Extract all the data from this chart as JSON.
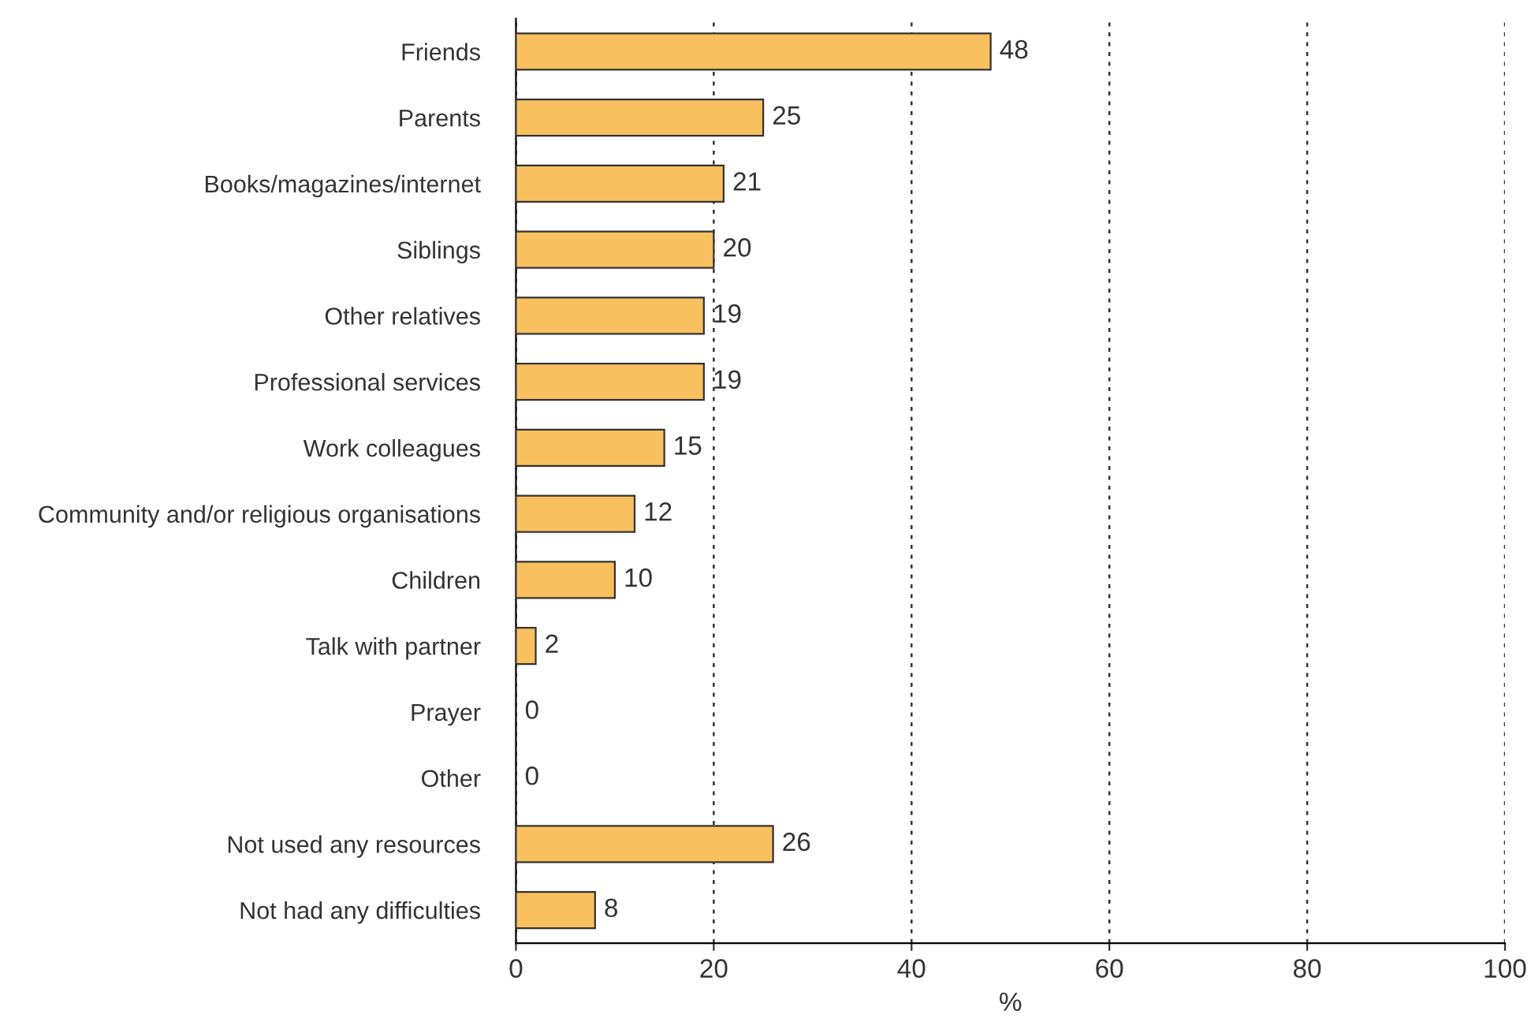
{
  "chart_data": {
    "type": "bar",
    "orientation": "horizontal",
    "xlabel": "%",
    "categories": [
      "Friends",
      "Parents",
      "Books/magazines/internet",
      "Siblings",
      "Other relatives",
      "Professional services",
      "Work colleagues",
      "Community and/or religious organisations",
      "Children",
      "Talk with partner",
      "Prayer",
      "Other",
      "Not used any resources",
      "Not had any difficulties"
    ],
    "values": [
      48,
      25,
      21,
      20,
      19,
      19,
      15,
      12,
      10,
      2,
      0,
      0,
      26,
      8
    ],
    "color": "#f9c060",
    "xlim": [
      0,
      100
    ],
    "xticks": [
      0,
      20,
      40,
      60,
      80,
      100
    ],
    "grid": "x",
    "data_labels": true
  }
}
